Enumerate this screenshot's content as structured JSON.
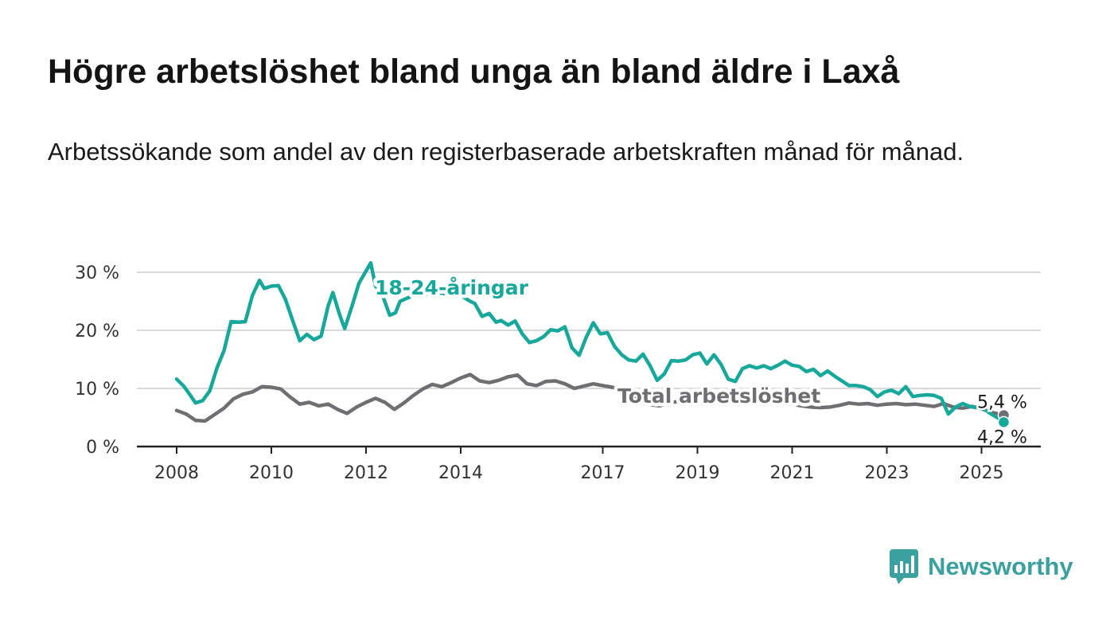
{
  "title": "Högre arbetslöshet bland unga än bland äldre i Laxå",
  "subtitle": "Arbetssökande som andel av den registerbaserade arbetskraften månad för månad.",
  "brand": {
    "name": "Newsworthy",
    "icon": "bar-chart-speech-bubble-icon",
    "color": "#3aa0a0"
  },
  "chart_data": {
    "type": "line",
    "title": "",
    "xlabel": "",
    "ylabel": "",
    "ylim": [
      0,
      30
    ],
    "xlim": [
      2008,
      2025.5
    ],
    "grid": true,
    "legend": "inline labels",
    "y_ticks": [
      {
        "value": 0,
        "label": "0 %"
      },
      {
        "value": 10,
        "label": "10 %"
      },
      {
        "value": 20,
        "label": "20 %"
      },
      {
        "value": 30,
        "label": "30 %"
      }
    ],
    "x_ticks": [
      {
        "value": 2008,
        "label": "2008"
      },
      {
        "value": 2010,
        "label": "2010"
      },
      {
        "value": 2012,
        "label": "2012"
      },
      {
        "value": 2014,
        "label": "2014"
      },
      {
        "value": 2017,
        "label": "2017"
      },
      {
        "value": 2019,
        "label": "2019"
      },
      {
        "value": 2021,
        "label": "2021"
      },
      {
        "value": 2023,
        "label": "2023"
      },
      {
        "value": 2025,
        "label": "2025"
      }
    ],
    "series": [
      {
        "name": "Total arbetslöshet",
        "color": "#6e6e73",
        "end_label": "5,4 %",
        "points": [
          [
            2008.0,
            6.2
          ],
          [
            2008.2,
            5.6
          ],
          [
            2008.4,
            4.5
          ],
          [
            2008.6,
            4.4
          ],
          [
            2008.8,
            5.5
          ],
          [
            2009.0,
            6.6
          ],
          [
            2009.2,
            8.2
          ],
          [
            2009.4,
            9.0
          ],
          [
            2009.6,
            9.4
          ],
          [
            2009.8,
            10.3
          ],
          [
            2010.0,
            10.2
          ],
          [
            2010.2,
            9.9
          ],
          [
            2010.4,
            8.5
          ],
          [
            2010.6,
            7.3
          ],
          [
            2010.8,
            7.6
          ],
          [
            2011.0,
            7.0
          ],
          [
            2011.2,
            7.3
          ],
          [
            2011.4,
            6.4
          ],
          [
            2011.6,
            5.7
          ],
          [
            2011.8,
            6.8
          ],
          [
            2012.0,
            7.6
          ],
          [
            2012.2,
            8.3
          ],
          [
            2012.4,
            7.6
          ],
          [
            2012.6,
            6.4
          ],
          [
            2012.8,
            7.5
          ],
          [
            2013.0,
            8.8
          ],
          [
            2013.2,
            9.9
          ],
          [
            2013.4,
            10.7
          ],
          [
            2013.6,
            10.3
          ],
          [
            2013.8,
            11.0
          ],
          [
            2014.0,
            11.8
          ],
          [
            2014.2,
            12.4
          ],
          [
            2014.4,
            11.3
          ],
          [
            2014.6,
            11.0
          ],
          [
            2014.8,
            11.4
          ],
          [
            2015.0,
            12.0
          ],
          [
            2015.2,
            12.3
          ],
          [
            2015.4,
            10.8
          ],
          [
            2015.6,
            10.5
          ],
          [
            2015.8,
            11.2
          ],
          [
            2016.0,
            11.3
          ],
          [
            2016.2,
            10.8
          ],
          [
            2016.4,
            10.0
          ],
          [
            2016.6,
            10.4
          ],
          [
            2016.8,
            10.8
          ],
          [
            2017.0,
            10.5
          ],
          [
            2017.2,
            10.2
          ],
          [
            2017.4,
            9.7
          ],
          [
            2017.6,
            8.9
          ],
          [
            2017.8,
            8.0
          ],
          [
            2018.0,
            7.2
          ],
          [
            2018.2,
            7.0
          ],
          [
            2018.4,
            7.5
          ],
          [
            2018.6,
            7.8
          ],
          [
            2018.8,
            8.2
          ],
          [
            2019.0,
            8.4
          ],
          [
            2019.2,
            8.0
          ],
          [
            2019.4,
            7.9
          ],
          [
            2019.6,
            7.7
          ],
          [
            2019.8,
            7.5
          ],
          [
            2020.0,
            7.7
          ],
          [
            2020.2,
            8.0
          ],
          [
            2020.4,
            7.8
          ],
          [
            2020.6,
            7.6
          ],
          [
            2020.8,
            7.4
          ],
          [
            2021.0,
            7.3
          ],
          [
            2021.2,
            7.0
          ],
          [
            2021.4,
            6.8
          ],
          [
            2021.6,
            6.7
          ],
          [
            2021.8,
            6.8
          ],
          [
            2022.0,
            7.1
          ],
          [
            2022.2,
            7.5
          ],
          [
            2022.4,
            7.3
          ],
          [
            2022.6,
            7.4
          ],
          [
            2022.8,
            7.1
          ],
          [
            2023.0,
            7.3
          ],
          [
            2023.2,
            7.4
          ],
          [
            2023.4,
            7.2
          ],
          [
            2023.6,
            7.3
          ],
          [
            2023.8,
            7.1
          ],
          [
            2024.0,
            6.9
          ],
          [
            2024.2,
            7.4
          ],
          [
            2024.4,
            6.8
          ],
          [
            2024.6,
            6.6
          ],
          [
            2024.8,
            6.9
          ],
          [
            2025.0,
            6.5
          ],
          [
            2025.2,
            5.9
          ],
          [
            2025.47,
            5.4
          ]
        ]
      },
      {
        "name": "18-24-åringar",
        "color": "#17a89c",
        "end_label": "4,2 %",
        "points": [
          [
            2008.0,
            11.6
          ],
          [
            2008.15,
            10.4
          ],
          [
            2008.3,
            8.7
          ],
          [
            2008.4,
            7.5
          ],
          [
            2008.55,
            7.9
          ],
          [
            2008.7,
            9.6
          ],
          [
            2008.85,
            13.5
          ],
          [
            2009.0,
            16.5
          ],
          [
            2009.15,
            21.5
          ],
          [
            2009.3,
            21.4
          ],
          [
            2009.45,
            21.5
          ],
          [
            2009.6,
            26.0
          ],
          [
            2009.75,
            28.6
          ],
          [
            2009.85,
            27.2
          ],
          [
            2010.0,
            27.6
          ],
          [
            2010.15,
            27.7
          ],
          [
            2010.3,
            25.3
          ],
          [
            2010.45,
            21.7
          ],
          [
            2010.6,
            18.2
          ],
          [
            2010.75,
            19.3
          ],
          [
            2010.9,
            18.4
          ],
          [
            2011.05,
            19.0
          ],
          [
            2011.2,
            24.2
          ],
          [
            2011.3,
            26.5
          ],
          [
            2011.45,
            22.5
          ],
          [
            2011.55,
            20.3
          ],
          [
            2011.7,
            24.1
          ],
          [
            2011.85,
            28.1
          ],
          [
            2012.0,
            30.2
          ],
          [
            2012.1,
            31.6
          ],
          [
            2012.2,
            27.6
          ],
          [
            2012.35,
            26.0
          ],
          [
            2012.5,
            22.6
          ],
          [
            2012.62,
            23.0
          ],
          [
            2012.72,
            25.0
          ],
          [
            2013.0,
            26.0
          ],
          [
            2013.5,
            26.5
          ],
          [
            2014.0,
            26.0
          ],
          [
            2014.2,
            25.0
          ],
          [
            2014.3,
            24.6
          ],
          [
            2014.45,
            22.4
          ],
          [
            2014.6,
            22.9
          ],
          [
            2014.75,
            21.4
          ],
          [
            2014.85,
            21.7
          ],
          [
            2015.0,
            20.9
          ],
          [
            2015.15,
            21.6
          ],
          [
            2015.3,
            19.4
          ],
          [
            2015.45,
            17.9
          ],
          [
            2015.6,
            18.2
          ],
          [
            2015.75,
            18.9
          ],
          [
            2015.9,
            20.1
          ],
          [
            2016.05,
            19.9
          ],
          [
            2016.2,
            20.6
          ],
          [
            2016.35,
            17.0
          ],
          [
            2016.5,
            15.7
          ],
          [
            2016.65,
            18.8
          ],
          [
            2016.8,
            21.3
          ],
          [
            2016.95,
            19.4
          ],
          [
            2017.1,
            19.6
          ],
          [
            2017.25,
            17.2
          ],
          [
            2017.4,
            15.8
          ],
          [
            2017.55,
            14.9
          ],
          [
            2017.7,
            14.7
          ],
          [
            2017.85,
            15.9
          ],
          [
            2018.0,
            13.9
          ],
          [
            2018.15,
            11.4
          ],
          [
            2018.3,
            12.5
          ],
          [
            2018.45,
            14.8
          ],
          [
            2018.6,
            14.7
          ],
          [
            2018.75,
            14.9
          ],
          [
            2018.9,
            15.8
          ],
          [
            2019.05,
            16.1
          ],
          [
            2019.2,
            14.2
          ],
          [
            2019.35,
            15.8
          ],
          [
            2019.5,
            14.1
          ],
          [
            2019.65,
            11.6
          ],
          [
            2019.8,
            11.2
          ],
          [
            2019.95,
            13.4
          ],
          [
            2020.1,
            13.9
          ],
          [
            2020.25,
            13.5
          ],
          [
            2020.4,
            13.9
          ],
          [
            2020.55,
            13.4
          ],
          [
            2020.7,
            14.0
          ],
          [
            2020.85,
            14.7
          ],
          [
            2021.0,
            14.0
          ],
          [
            2021.15,
            13.8
          ],
          [
            2021.3,
            12.9
          ],
          [
            2021.45,
            13.3
          ],
          [
            2021.6,
            12.2
          ],
          [
            2021.75,
            13.0
          ],
          [
            2021.9,
            12.1
          ],
          [
            2022.05,
            11.3
          ],
          [
            2022.2,
            10.5
          ],
          [
            2022.35,
            10.5
          ],
          [
            2022.5,
            10.3
          ],
          [
            2022.65,
            9.8
          ],
          [
            2022.8,
            8.6
          ],
          [
            2022.95,
            9.4
          ],
          [
            2023.1,
            9.7
          ],
          [
            2023.25,
            9.1
          ],
          [
            2023.4,
            10.3
          ],
          [
            2023.55,
            8.6
          ],
          [
            2023.7,
            8.8
          ],
          [
            2023.85,
            8.9
          ],
          [
            2024.0,
            8.8
          ],
          [
            2024.15,
            8.3
          ],
          [
            2024.3,
            5.6
          ],
          [
            2024.45,
            6.8
          ],
          [
            2024.6,
            7.4
          ],
          [
            2024.75,
            6.9
          ],
          [
            2024.9,
            6.7
          ],
          [
            2025.05,
            6.5
          ],
          [
            2025.2,
            5.6
          ],
          [
            2025.35,
            4.9
          ],
          [
            2025.47,
            4.2
          ]
        ]
      }
    ]
  }
}
